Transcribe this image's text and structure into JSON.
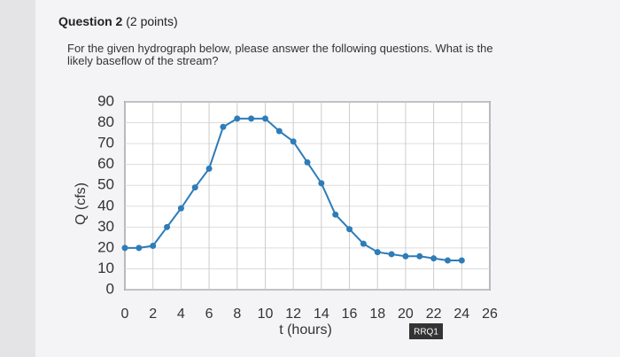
{
  "question": {
    "title": "Question 2",
    "points": "(2 points)",
    "text": "For the given hydrograph below, please answer the following questions. What is the likely baseflow of the stream?"
  },
  "tooltip": "RRQ1",
  "chart_data": {
    "type": "line",
    "x_label": "t (hours)",
    "y_label": "Q (cfs)",
    "x": [
      0,
      1,
      2,
      3,
      4,
      5,
      6,
      7,
      8,
      9,
      10,
      11,
      12,
      13,
      14,
      15,
      16,
      17,
      18,
      19,
      20,
      21,
      22,
      23,
      24
    ],
    "series": [
      {
        "name": "Q",
        "color": "#2e7cb8",
        "values": [
          20,
          20,
          21,
          30,
          39,
          49,
          58,
          78,
          82,
          82,
          82,
          76,
          71,
          61,
          51,
          36,
          29,
          22,
          18,
          17,
          16,
          16,
          15,
          14,
          14
        ]
      }
    ],
    "xlim": [
      0,
      26
    ],
    "ylim": [
      0,
      90
    ],
    "xticks": [
      0,
      2,
      4,
      6,
      8,
      10,
      12,
      14,
      16,
      18,
      20,
      22,
      24,
      26
    ],
    "yticks": [
      0,
      10,
      20,
      30,
      40,
      50,
      60,
      70,
      80,
      90
    ],
    "grid": true
  }
}
